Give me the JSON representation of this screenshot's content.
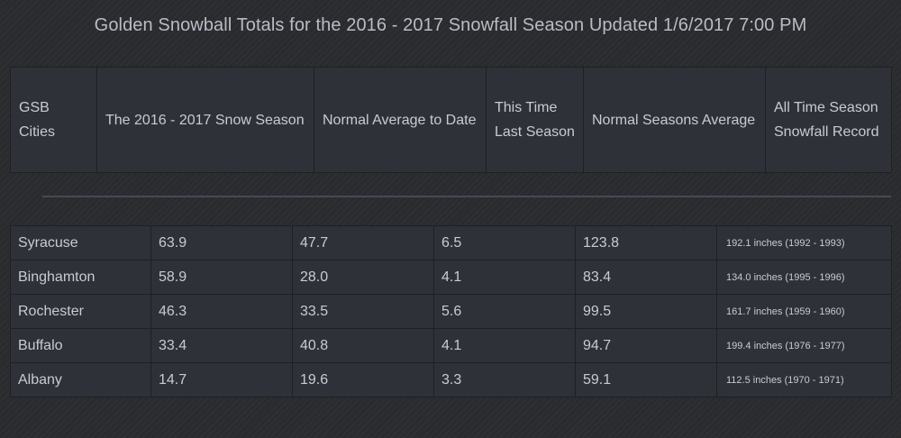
{
  "title": "Golden Snowball Totals for the 2016 - 2017 Snowfall Season Updated 1/6/2017 7:00 PM",
  "header": {
    "columns": [
      "GSB Cities",
      "The 2016 - 2017 Snow Season",
      "Normal Average to Date",
      "This Time Last Season",
      "Normal Seasons Average",
      "All Time Season Snowfall Record"
    ]
  },
  "rows": [
    [
      "Syracuse",
      "63.9",
      "47.7",
      "6.5",
      "123.8",
      "192.1 inches (1992 - 1993)"
    ],
    [
      "Binghamton",
      "58.9",
      "28.0",
      "4.1",
      "83.4",
      "134.0 inches (1995 - 1996)"
    ],
    [
      "Rochester",
      "46.3",
      "33.5",
      "5.6",
      "99.5",
      "161.7 inches (1959 - 1960)"
    ],
    [
      "Buffalo",
      "33.4",
      "40.8",
      "4.1",
      "94.7",
      "199.4 inches (1976 - 1977)"
    ],
    [
      "Albany",
      "14.7",
      "19.6",
      "3.3",
      "59.1",
      "112.5 inches (1970 - 1971)"
    ]
  ]
}
